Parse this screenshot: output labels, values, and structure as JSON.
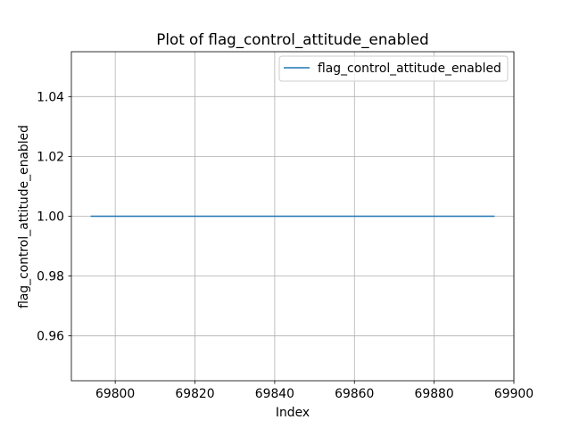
{
  "chart_data": {
    "type": "line",
    "title": "Plot of flag_control_attitude_enabled",
    "xlabel": "Index",
    "ylabel": "flag_control_attitude_enabled",
    "xlim": [
      69789,
      69900
    ],
    "ylim": [
      0.945,
      1.055
    ],
    "xticks": [
      69800,
      69820,
      69840,
      69860,
      69880,
      69900
    ],
    "yticks": [
      0.96,
      0.98,
      1.0,
      1.02,
      1.04
    ],
    "xtick_labels": [
      "69800",
      "69820",
      "69840",
      "69860",
      "69880",
      "69900"
    ],
    "ytick_labels": [
      "0.96",
      "0.98",
      "1.00",
      "1.02",
      "1.04"
    ],
    "grid": true,
    "legend": {
      "placement": "top-right"
    },
    "series": [
      {
        "name": "flag_control_attitude_enabled",
        "color": "#1f77b4",
        "x": [
          69794,
          69895
        ],
        "y": [
          1.0,
          1.0
        ]
      }
    ]
  }
}
